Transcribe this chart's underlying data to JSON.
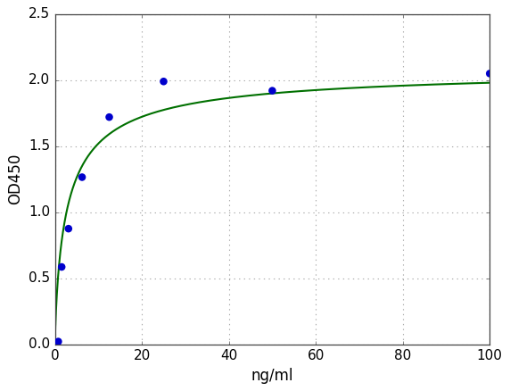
{
  "scatter_x": [
    0.78,
    1.56,
    3.125,
    6.25,
    12.5,
    25,
    50,
    100
  ],
  "scatter_y": [
    0.02,
    0.585,
    0.875,
    1.265,
    1.72,
    1.99,
    1.92,
    2.05
  ],
  "xlabel": "ng/ml",
  "ylabel": "OD450",
  "xlim": [
    0,
    100
  ],
  "ylim": [
    0.0,
    2.5
  ],
  "xticks": [
    0,
    20,
    40,
    60,
    80,
    100
  ],
  "yticks": [
    0.0,
    0.5,
    1.0,
    1.5,
    2.0,
    2.5
  ],
  "scatter_color": "#0000cc",
  "line_color": "#007000",
  "background_color": "#ffffff",
  "grid_color": "#aaaaaa",
  "scatter_size": 38,
  "tick_fontsize": 11,
  "label_fontsize": 12
}
